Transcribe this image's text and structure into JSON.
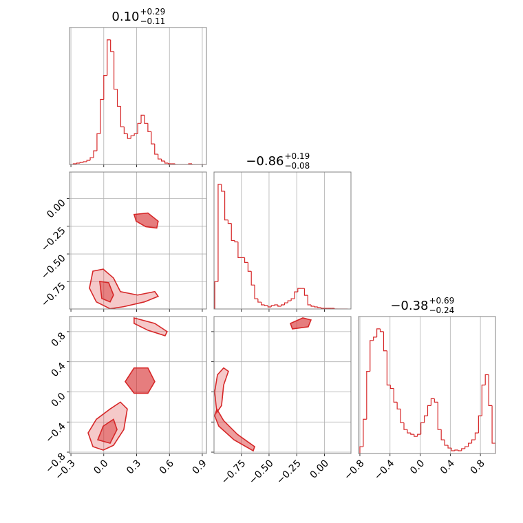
{
  "chart_data": [
    {
      "type": "histogram",
      "title": "0.10",
      "title_plus": "+0.29",
      "title_minus": "−0.11",
      "color": "#d62728",
      "bins": [
        -0.31,
        -0.279,
        -0.248,
        -0.217,
        -0.186,
        -0.155,
        -0.124,
        -0.093,
        -0.062,
        -0.031,
        0,
        0.031,
        0.062,
        0.093,
        0.124,
        0.155,
        0.186,
        0.217,
        0.248,
        0.279,
        0.31,
        0.341,
        0.372,
        0.403,
        0.434,
        0.465,
        0.496,
        0.527,
        0.558,
        0.589,
        0.62,
        0.651,
        0.682,
        0.713,
        0.744,
        0.775,
        0.806,
        0.837,
        0.868,
        0.899,
        0.93
      ],
      "values": [
        0,
        1,
        2,
        3,
        4,
        6,
        10,
        20,
        45,
        95,
        130,
        182,
        165,
        110,
        85,
        55,
        45,
        38,
        42,
        45,
        60,
        72,
        60,
        48,
        30,
        15,
        8,
        5,
        2,
        1,
        1,
        0,
        0,
        0,
        0,
        1,
        0,
        0,
        0,
        0
      ],
      "xlim": [
        -0.313,
        0.938
      ],
      "ylim": [
        0,
        200
      ],
      "xticks": [
        -0.3,
        0,
        0.3,
        0.6,
        0.9
      ],
      "grid": true
    },
    {
      "type": "contour",
      "color": "#d62728",
      "xlim": [
        -0.313,
        0.938
      ],
      "ylim": [
        -0.997,
        0.24
      ],
      "xticks": [
        -0.3,
        0,
        0.3,
        0.6,
        0.9
      ],
      "yticks": [
        {
          "value": 0,
          "label": "0.00"
        },
        {
          "value": -0.25,
          "label": "−0.25"
        },
        {
          "value": -0.5,
          "label": "−0.50"
        },
        {
          "value": -0.75,
          "label": "−0.75"
        }
      ],
      "contours": [
        {
          "x": [
            -0.099,
            -0.005,
            0.089,
            0.152,
            0.309,
            0.466,
            0.497,
            0.372,
            0.183,
            0.058,
            -0.068,
            -0.131
          ],
          "y": [
            -0.655,
            -0.637,
            -0.717,
            -0.84,
            -0.871,
            -0.84,
            -0.883,
            -0.933,
            -0.976,
            -0.995,
            -0.933,
            -0.809
          ]
        },
        {
          "x": [
            -0.037,
            0.045,
            0.089,
            0.058,
            -0.018
          ],
          "y": [
            -0.748,
            -0.76,
            -0.871,
            -0.933,
            -0.902
          ]
        },
        {
          "x": [
            0.277,
            0.403,
            0.497,
            0.484,
            0.384,
            0.296
          ],
          "y": [
            -0.143,
            -0.13,
            -0.204,
            -0.266,
            -0.254,
            -0.204
          ]
        }
      ],
      "grid": true
    },
    {
      "type": "histogram",
      "title": "−0.86",
      "title_plus": "+0.19",
      "title_minus": "−0.08",
      "color": "#d62728",
      "bins": [
        -0.99,
        -0.96,
        -0.93,
        -0.9,
        -0.87,
        -0.84,
        -0.81,
        -0.78,
        -0.75,
        -0.72,
        -0.69,
        -0.66,
        -0.63,
        -0.6,
        -0.57,
        -0.54,
        -0.51,
        -0.48,
        -0.45,
        -0.42,
        -0.39,
        -0.36,
        -0.33,
        -0.3,
        -0.27,
        -0.24,
        -0.21,
        -0.18,
        -0.15,
        -0.12,
        -0.09,
        -0.06,
        -0.03,
        0,
        0.03,
        0.06,
        0.09,
        0.12,
        0.15,
        0.18,
        0.21
      ],
      "values": [
        40,
        182,
        172,
        130,
        125,
        100,
        98,
        75,
        75,
        68,
        55,
        35,
        15,
        10,
        6,
        5,
        3,
        5,
        6,
        4,
        6,
        9,
        12,
        15,
        25,
        30,
        30,
        20,
        6,
        4,
        3,
        2,
        1,
        1,
        1,
        1,
        0,
        0,
        0,
        0
      ],
      "xlim": [
        -0.997,
        0.24
      ],
      "ylim": [
        0,
        200
      ],
      "xticks": [
        -0.75,
        -0.5,
        -0.25,
        0
      ],
      "grid": true
    },
    {
      "type": "contour",
      "color": "#d62728",
      "xlim": [
        -0.313,
        0.938
      ],
      "ylim": [
        -0.818,
        1.0
      ],
      "xticks": [
        {
          "value": -0.3,
          "label": "−0.3"
        },
        {
          "value": 0,
          "label": "0.0"
        },
        {
          "value": 0.3,
          "label": "0.3"
        },
        {
          "value": 0.6,
          "label": "0.6"
        },
        {
          "value": 0.9,
          "label": "0.9"
        }
      ],
      "yticks": [
        {
          "value": 0.8,
          "label": "0.8"
        },
        {
          "value": 0.4,
          "label": "0.4"
        },
        {
          "value": 0,
          "label": "0.0"
        },
        {
          "value": -0.4,
          "label": "−0.4"
        },
        {
          "value": -0.8,
          "label": "−0.8"
        }
      ],
      "contours": [
        {
          "x": [
            -0.099,
            -0.143,
            -0.068,
            0.058,
            0.152,
            0.215,
            0.183,
            0.089,
            -0.005
          ],
          "y": [
            -0.727,
            -0.545,
            -0.364,
            -0.227,
            -0.136,
            -0.227,
            -0.5,
            -0.709,
            -0.773
          ]
        },
        {
          "x": [
            -0.055,
            -0.005,
            0.089,
            0.121,
            0.058
          ],
          "y": [
            -0.636,
            -0.455,
            -0.364,
            -0.5,
            -0.682
          ]
        },
        {
          "x": [
            0.196,
            0.277,
            0.403,
            0.466,
            0.403,
            0.277
          ],
          "y": [
            0.136,
            0.318,
            0.318,
            0.136,
            -0.018,
            -0.018
          ]
        },
        {
          "x": [
            0.277,
            0.466,
            0.579,
            0.56,
            0.403,
            0.277
          ],
          "y": [
            0.982,
            0.909,
            0.8,
            0.745,
            0.818,
            0.909
          ]
        }
      ],
      "grid": true
    },
    {
      "type": "contour",
      "color": "#d62728",
      "xlim": [
        -0.997,
        0.24
      ],
      "ylim": [
        -0.818,
        1.0
      ],
      "xticks": [
        {
          "value": -0.75,
          "label": "−0.75"
        },
        {
          "value": -0.5,
          "label": "−0.50"
        },
        {
          "value": -0.25,
          "label": "−0.25"
        },
        {
          "value": 0,
          "label": "0.00"
        }
      ],
      "yticks": [
        0.8,
        0.4,
        0,
        -0.4,
        -0.8
      ],
      "contours": [
        {
          "x": [
            -0.966,
            -0.91,
            -0.867,
            -0.91,
            -0.929,
            -0.972,
            -0.991
          ],
          "y": [
            0.227,
            0.318,
            0.273,
            0.091,
            -0.182,
            -0.273,
            0
          ]
        },
        {
          "x": [
            -0.972,
            -0.91,
            -0.786,
            -0.63,
            -0.643,
            -0.817,
            -0.954,
            -0.991
          ],
          "y": [
            -0.227,
            -0.382,
            -0.564,
            -0.727,
            -0.782,
            -0.636,
            -0.455,
            -0.318
          ]
        },
        {
          "x": [
            -0.307,
            -0.195,
            -0.121,
            -0.146,
            -0.289
          ],
          "y": [
            0.909,
            0.982,
            0.955,
            0.864,
            0.836
          ]
        }
      ],
      "grid": true
    },
    {
      "type": "histogram",
      "title": "−0.38",
      "title_plus": "+0.69",
      "title_minus": "−0.24",
      "color": "#d62728",
      "bins": [
        -0.8,
        -0.755,
        -0.71,
        -0.665,
        -0.62,
        -0.575,
        -0.53,
        -0.485,
        -0.44,
        -0.395,
        -0.35,
        -0.305,
        -0.26,
        -0.215,
        -0.17,
        -0.125,
        -0.08,
        -0.035,
        0.01,
        0.055,
        0.1,
        0.145,
        0.19,
        0.235,
        0.28,
        0.325,
        0.37,
        0.415,
        0.46,
        0.505,
        0.55,
        0.595,
        0.64,
        0.685,
        0.73,
        0.775,
        0.82,
        0.865,
        0.91,
        0.955,
        1.0
      ],
      "values": [
        10,
        50,
        120,
        165,
        170,
        182,
        178,
        150,
        100,
        95,
        75,
        65,
        45,
        35,
        30,
        28,
        25,
        28,
        45,
        55,
        70,
        80,
        75,
        35,
        20,
        12,
        8,
        4,
        5,
        4,
        7,
        10,
        15,
        20,
        30,
        55,
        100,
        115,
        70,
        15
      ],
      "xlim": [
        -0.818,
        1.0
      ],
      "ylim": [
        0,
        200
      ],
      "xticks": [
        {
          "value": -0.8,
          "label": "−0.8"
        },
        {
          "value": -0.4,
          "label": "−0.4"
        },
        {
          "value": 0,
          "label": "0.0"
        },
        {
          "value": 0.4,
          "label": "0.4"
        },
        {
          "value": 0.8,
          "label": "0.8"
        }
      ],
      "grid": true
    }
  ]
}
